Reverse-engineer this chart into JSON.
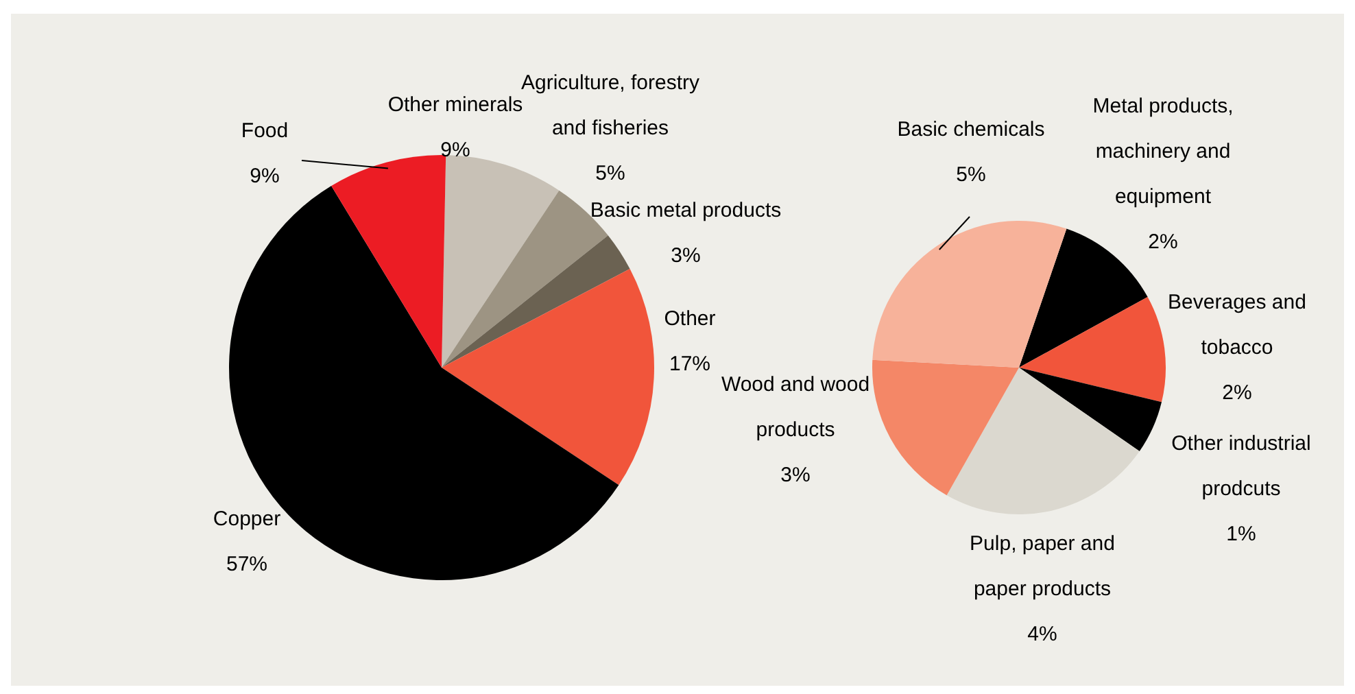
{
  "chart_data": [
    {
      "type": "pie",
      "categories": [
        "Other minerals",
        "Agriculture, forestry and fisheries",
        "Basic metal products",
        "Other",
        "Copper",
        "Food"
      ],
      "values": [
        9,
        5,
        3,
        17,
        57,
        9
      ],
      "value_labels": [
        "9%",
        "5%",
        "3%",
        "17%",
        "57%",
        "9%"
      ],
      "colors": [
        "#c8c1b6",
        "#9d9483",
        "#6b6252",
        "#f1553b",
        "#000000",
        "#ec1c24"
      ]
    },
    {
      "type": "pie",
      "categories": [
        "Metal products, machinery and equipment",
        "Beverages and tobacco",
        "Other industrial prodcuts",
        "Pulp, paper and paper products",
        "Wood and wood products",
        "Basic chemicals"
      ],
      "values": [
        2,
        2,
        1,
        4,
        3,
        5
      ],
      "value_labels": [
        "2%",
        "2%",
        "1%",
        "4%",
        "3%",
        "5%"
      ],
      "colors": [
        "#000000",
        "#f1553b",
        "#000000",
        "#dbd8cf",
        "#f48767",
        "#f7b29a"
      ]
    }
  ]
}
